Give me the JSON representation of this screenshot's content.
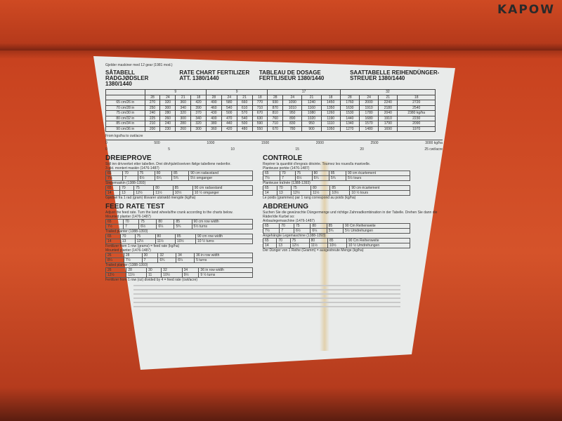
{
  "logo": "KAPOW",
  "label": {
    "note": "Gjelder maskiner med 12 gear (1981 mod.)",
    "titles": [
      "SÅTABELL RADGJØDSLER 1380/1440",
      "RATE CHART FERTILIZER ATT. 1380/1440",
      "TABLEAU DE DOSAGE FERTILISEUR 1380/1440",
      "SAATTABELLE REIHENDÜNGER-STREUER 1380/1440"
    ],
    "groups": [
      "9",
      "9",
      "17",
      "32"
    ],
    "teeth": [
      "28",
      "24",
      "21",
      "18"
    ],
    "rows": [
      {
        "w": "65 cm/26 in",
        "v": [
          "270",
          "320",
          "360",
          "420",
          "490",
          "580",
          "660",
          "770",
          "930",
          "1090",
          "1240",
          "1450",
          "1760",
          "2000",
          "2240",
          "2720"
        ]
      },
      {
        "w": "70 cm/28 in",
        "v": [
          "250",
          "300",
          "340",
          "390",
          "460",
          "540",
          "610",
          "710",
          "870",
          "1010",
          "1160",
          "1350",
          "1630",
          "1910",
          "2180",
          "2540"
        ]
      },
      {
        "w": "75 cm/30 in",
        "v": [
          "240",
          "280",
          "320",
          "370",
          "430",
          "500",
          "570",
          "670",
          "810",
          "950",
          "1080",
          "1260",
          "1530",
          "1780",
          "2040",
          "2380 kg/ha"
        ]
      },
      {
        "w": "80 cm/32 in",
        "v": [
          "225",
          "260",
          "300",
          "340",
          "400",
          "470",
          "540",
          "630",
          "760",
          "890",
          "1020",
          "1190",
          "1440",
          "1680",
          "1910",
          "2230"
        ]
      },
      {
        "w": "85 cm/34 in",
        "v": [
          "210",
          "240",
          "280",
          "320",
          "380",
          "440",
          "500",
          "590",
          "710",
          "830",
          "950",
          "1110",
          "1340",
          "1570",
          "1790",
          "2090"
        ]
      },
      {
        "w": "90 cm/36 in",
        "v": [
          "200",
          "230",
          "260",
          "300",
          "360",
          "420",
          "480",
          "550",
          "670",
          "780",
          "900",
          "1050",
          "1270",
          "1480",
          "1690",
          "1970"
        ]
      }
    ],
    "conv_title": "From kgs/ha to cwt/acre",
    "kg_scale": [
      "0",
      "500",
      "1000",
      "1500",
      "2000",
      "2500",
      "3000 kg/ha"
    ],
    "cwt_scale": [
      "0",
      "5",
      "10",
      "15",
      "20",
      "25 cwt/acre"
    ],
    "dreieprove": {
      "title": "DREIEPROVE",
      "text": "Still inn drivverket etter tabellen. Drei drivhjulet/sveiven ifølge tabellene nedenfor.",
      "sub1": "3-pkt. montert maskin (1476-1487)",
      "r1": [
        "65",
        "70",
        "75",
        "80",
        "85",
        "90 cm radavstand"
      ],
      "r1b": [
        "7½",
        "7",
        "6½",
        "6¼",
        "5¾",
        "5½ omganger"
      ],
      "sub2": "Slepemaskin (1388-1393)",
      "r2": [
        "65",
        "70",
        "75",
        "80",
        "85",
        "90 cm radavstand"
      ],
      "r2b": [
        "14",
        "13",
        "12½",
        "11½",
        "10½",
        "10 ½ omganger"
      ],
      "foot": "Gjødsel fra 1 rad (gram) tilsvarer utstrødd mengde (kg/ha)"
    },
    "feed": {
      "title": "FEED RATE TEST",
      "text": "Adjust the feed rate. Turn the land wheels/the crank according to the charts below.",
      "sub1": "Mounted planter (1476-1487)",
      "r1": [
        "65",
        "70",
        "75",
        "80",
        "85",
        "90 cm row width"
      ],
      "r1b": [
        "7½",
        "7",
        "6½",
        "6¼",
        "5¾",
        "5½ turns"
      ],
      "sub2": "Trailed planter (1388-1393)",
      "r2": [
        "65",
        "70",
        "75",
        "80",
        "85",
        "90 cm row width"
      ],
      "r2b": [
        "14",
        "13",
        "12½",
        "11½",
        "10½",
        "10 ½ turns"
      ],
      "foot1": "Fertilizer from 1 row (grams) = feed rate (kg/ha)",
      "sub3": "Mounted planter (1476-1487)",
      "r3": [
        "26",
        "28",
        "30",
        "32",
        "34",
        "36 in row width"
      ],
      "r3b": [
        "8¼",
        "7½",
        "7",
        "6¾",
        "6¼",
        "5 turns"
      ],
      "sub4": "Trailed planter (1388-1393)",
      "r4": [
        "26",
        "28",
        "30",
        "32",
        "34",
        "36 in row width"
      ],
      "r4b": [
        "12½",
        "11½",
        "11",
        "10½",
        "9½",
        "9 ½ turns"
      ],
      "foot2": "Fertilizer from 1 row (oz) divided by 4 = feed rate (cwt/acre)"
    },
    "controle": {
      "title": "CONTROLE",
      "text": "Repérer la quantité d'engrais désirée. Tournez les roues/la manivelle.",
      "sub1": "Planteuse portée (1476-1487)",
      "r1": [
        "65",
        "70",
        "75",
        "80",
        "85",
        "90 cm écartement"
      ],
      "r1b": [
        "7½",
        "7",
        "6½",
        "6¼",
        "5¾",
        "5½ tours"
      ],
      "sub2": "Planteuse traînée (1388-1393)",
      "r2": [
        "65",
        "70",
        "75",
        "80",
        "85",
        "90 cm écartement"
      ],
      "r2b": [
        "14",
        "13",
        "12½",
        "11½",
        "10½",
        "10 ½ tours"
      ],
      "foot": "Le poids (grammes) par 1 rang correspond au poids (kg/ha)"
    },
    "abdrehung": {
      "title": "ABDREHUNG",
      "text": "Suchen Sie die gewünschte Düngermenge und richtige Zahnradkombination in der Tabelle. Drehen Sie dann die Räder/die Kurbel so:",
      "sub1": "Anbaulegemaschine (1476-1487)",
      "r1": [
        "65",
        "70",
        "75",
        "80",
        "85",
        "90 Cm Reihenweite"
      ],
      "r1b": [
        "7½",
        "7",
        "6½",
        "6¼",
        "5¾",
        "5½ Umdrehungen"
      ],
      "sub2": "Angehängte Legemaschine (1388-1393)",
      "r2": [
        "65",
        "70",
        "75",
        "80",
        "85",
        "90 Cm Reihenweite"
      ],
      "r2b": [
        "14",
        "13",
        "12½",
        "11½",
        "10½",
        "10 ½ Umdrehungen"
      ],
      "foot": "Der Dünger von 1 Reihe (Gramm) = ausgestreute Menge (kg/ha)"
    }
  }
}
